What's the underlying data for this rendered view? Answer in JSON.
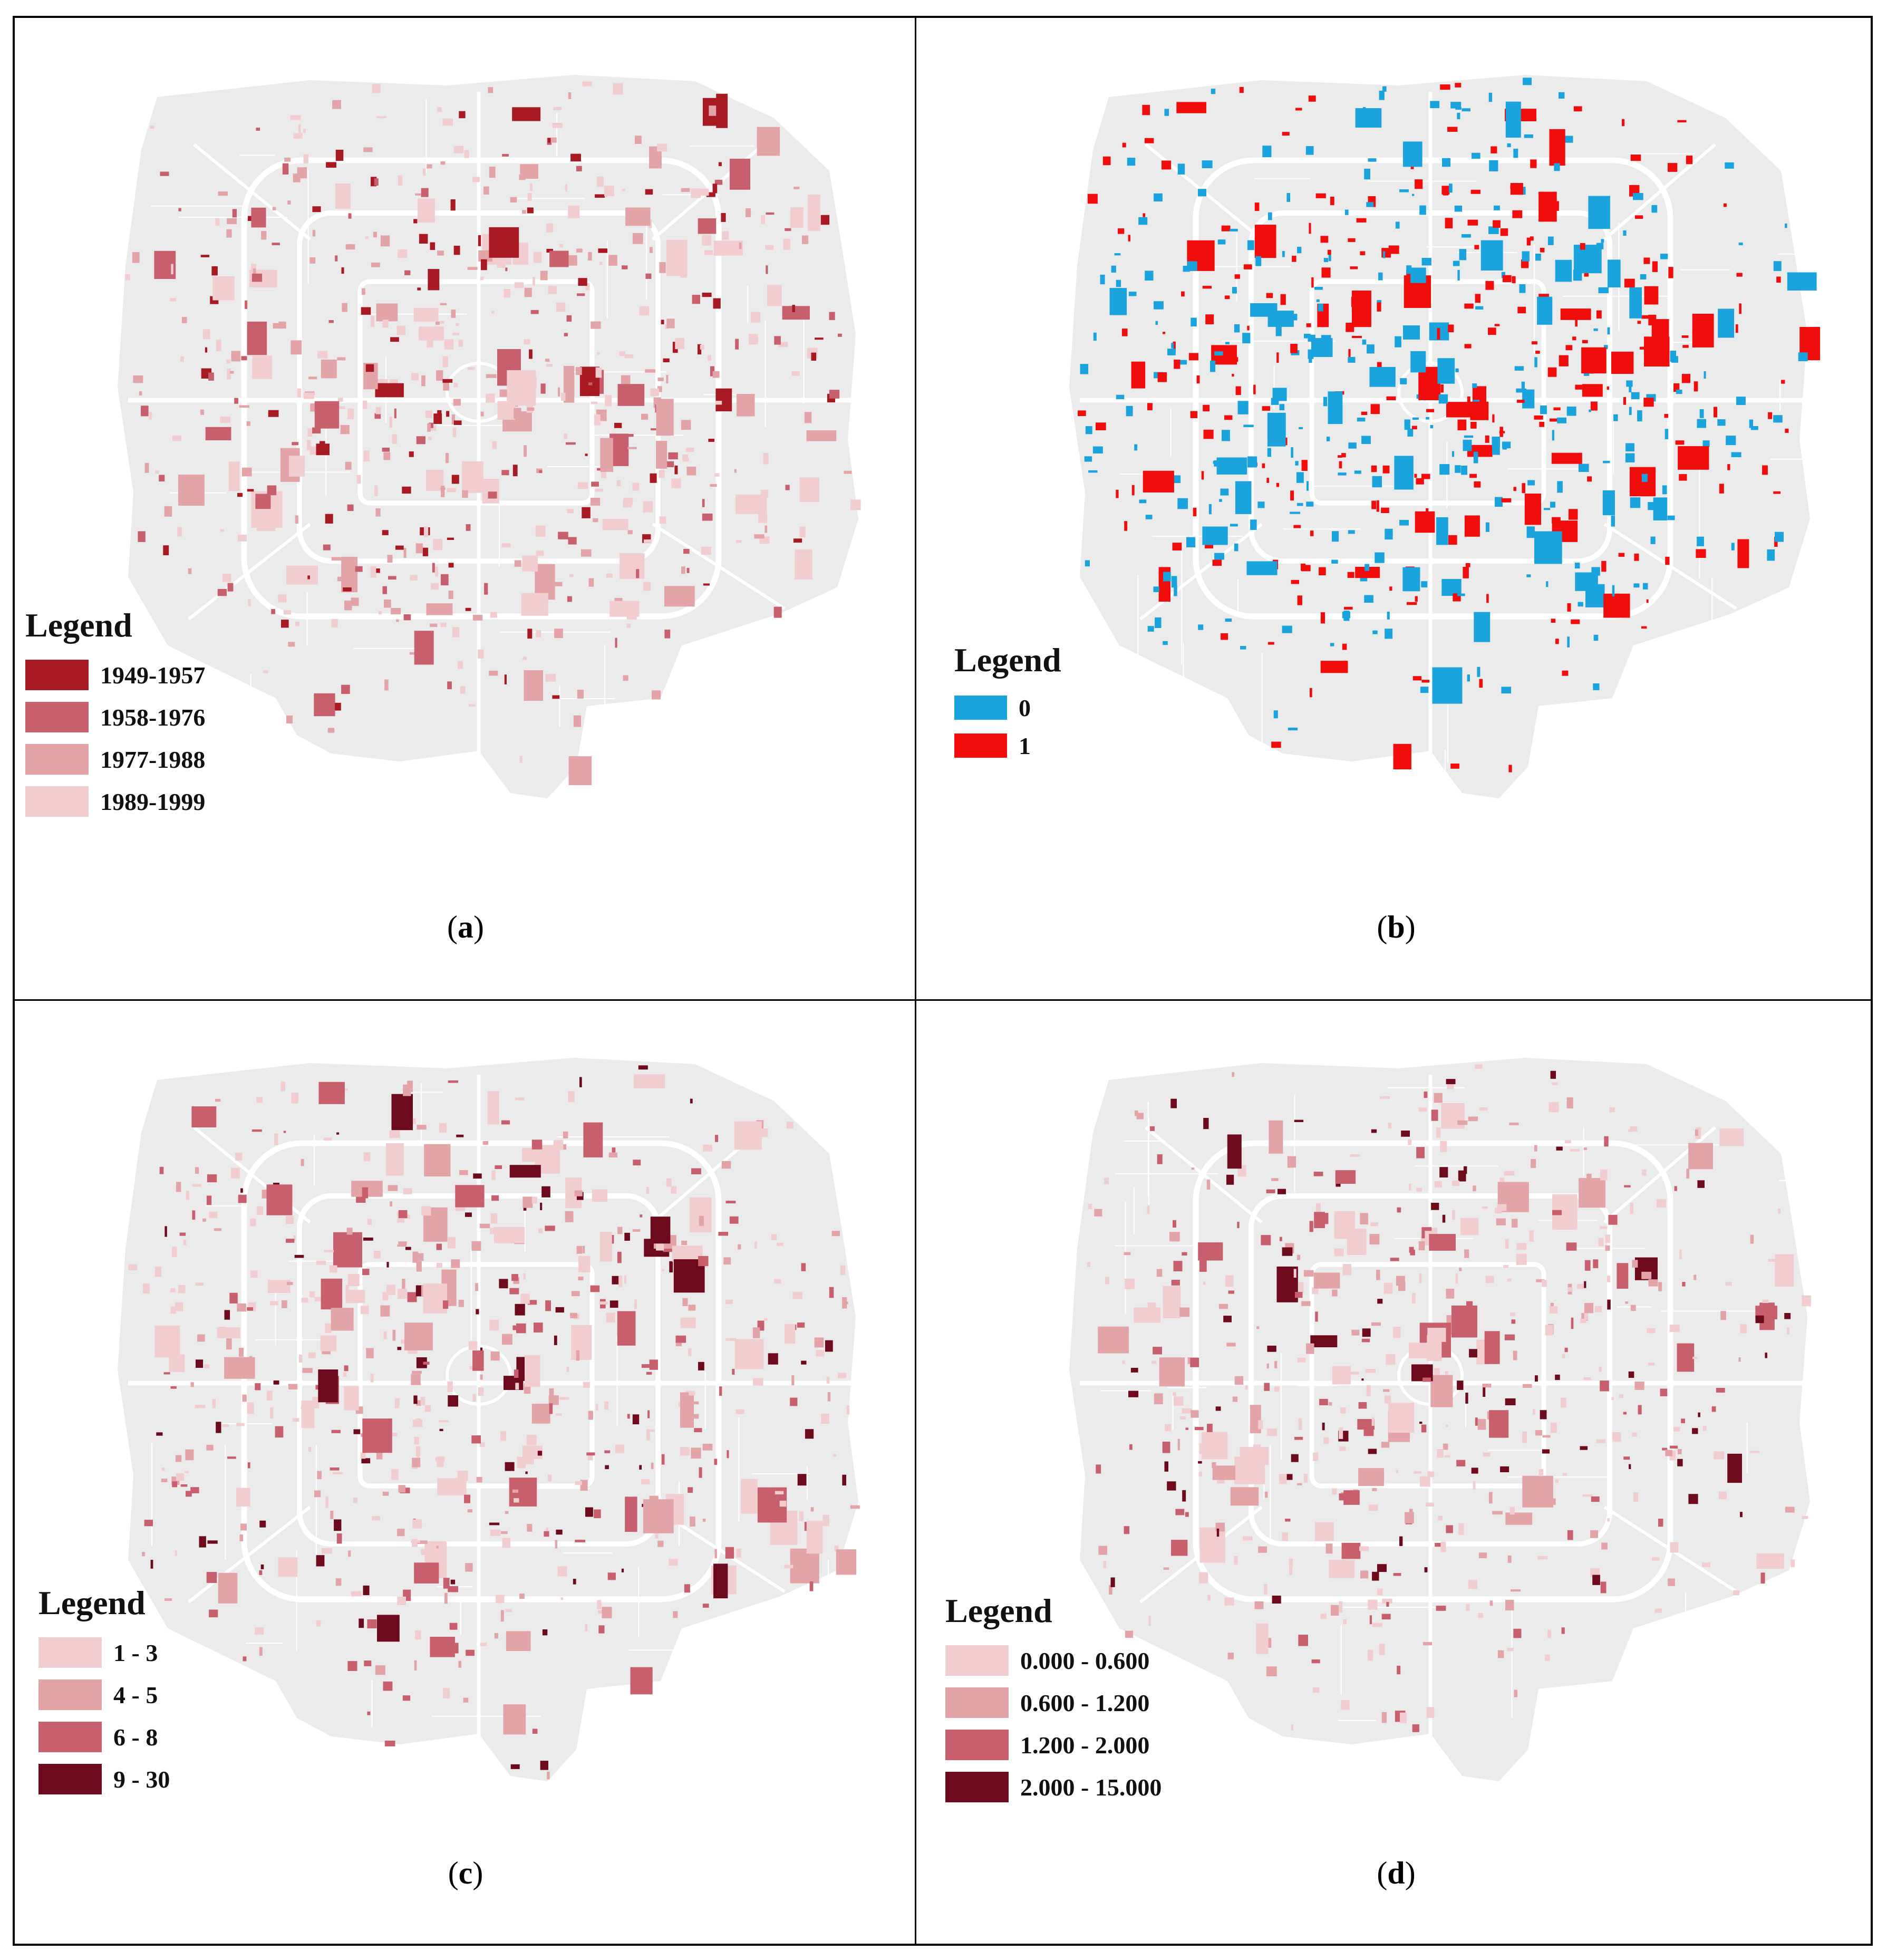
{
  "colors": {
    "map_background": "#ebebeb",
    "road": "#ffffff",
    "blue": "#1aa3dc",
    "red": "#f20d0d"
  },
  "panels": [
    {
      "id": "a",
      "legend_title": "Legend",
      "caption": "a",
      "items": [
        {
          "label": "1949-1957",
          "color": "#a81a22"
        },
        {
          "label": "1958-1976",
          "color": "#c75f6c"
        },
        {
          "label": "1977-1988",
          "color": "#e3a4a8"
        },
        {
          "label": "1989-1999",
          "color": "#f1cdd0"
        }
      ]
    },
    {
      "id": "b",
      "legend_title": "Legend",
      "caption": "b",
      "items": [
        {
          "label": "0",
          "color": "#1aa3dc"
        },
        {
          "label": "1",
          "color": "#f20d0d"
        }
      ]
    },
    {
      "id": "c",
      "legend_title": "Legend",
      "caption": "c",
      "items": [
        {
          "label": "1 - 3",
          "color": "#f1cdd0"
        },
        {
          "label": "4 - 5",
          "color": "#e3a4a8"
        },
        {
          "label": "6 - 8",
          "color": "#c75f6c"
        },
        {
          "label": "9 - 30",
          "color": "#6d0b1d"
        }
      ]
    },
    {
      "id": "d",
      "legend_title": "Legend",
      "caption": "d",
      "items": [
        {
          "label": "0.000 - 0.600",
          "color": "#f1cdd0"
        },
        {
          "label": "0.600 - 1.200",
          "color": "#e3a4a8"
        },
        {
          "label": "1.200 - 2.000",
          "color": "#c75f6c"
        },
        {
          "label": "2.000 - 15.000",
          "color": "#6d0b1d"
        }
      ]
    }
  ]
}
